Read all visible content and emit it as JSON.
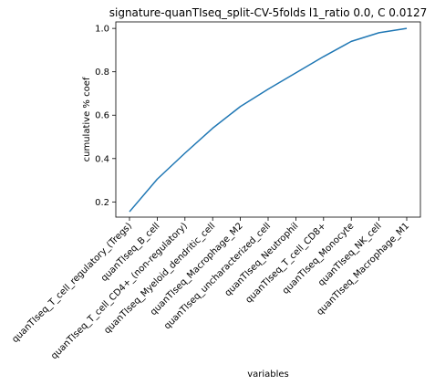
{
  "chart_data": {
    "type": "line",
    "title": "signature-quanTIseq_split-CV-5folds l1_ratio 0.0, C 0.0127",
    "xlabel": "variables",
    "ylabel": "cumulative % coef",
    "categories": [
      "quanTIseq_T_cell_regulatory_(Tregs)",
      "quanTIseq_B_cell",
      "quanTIseq_T_cell_CD4+_(non-regulatory)",
      "quanTIseq_Myeloid_dendritic_cell",
      "quanTIseq_Macrophage_M2",
      "quanTIseq_uncharacterized_cell",
      "quanTIseq_Neutrophil",
      "quanTIseq_T_cell_CD8+",
      "quanTIseq_Monocyte",
      "quanTIseq_NK_cell",
      "quanTIseq_Macrophage_M1"
    ],
    "values": [
      0.155,
      0.305,
      0.425,
      0.54,
      0.64,
      0.72,
      0.795,
      0.87,
      0.94,
      0.98,
      1.0
    ],
    "yticks": [
      0.2,
      0.4,
      0.6,
      0.8,
      1.0
    ],
    "ytick_labels": [
      "0.2",
      "0.4",
      "0.6",
      "0.8",
      "1.0"
    ],
    "ylim": [
      0.13,
      1.03
    ],
    "grid": false,
    "line_color": "#1f77b4"
  }
}
